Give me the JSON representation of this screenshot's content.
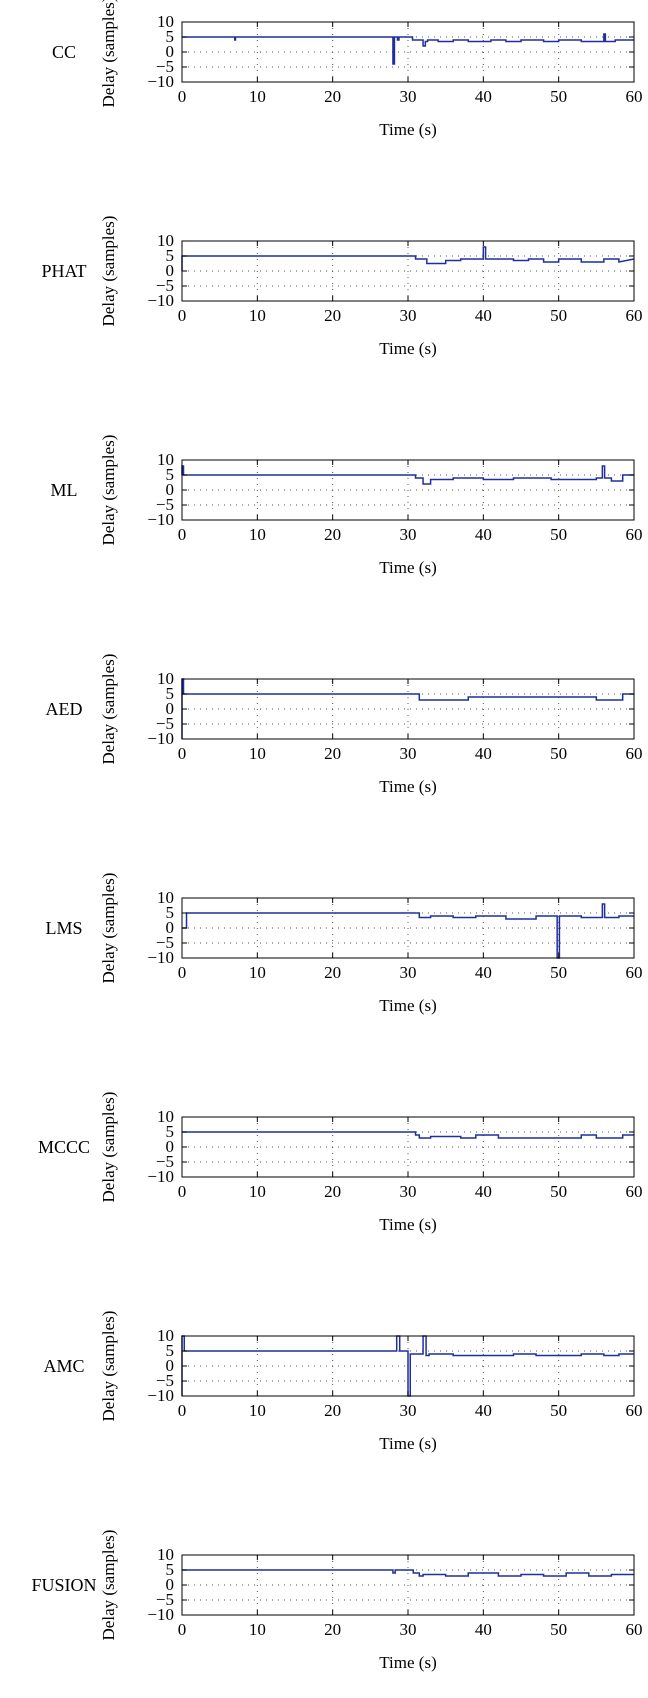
{
  "chart_data": [
    {
      "type": "line",
      "title": "",
      "method_label": "CC",
      "xlabel": "Time (s)",
      "ylabel": "Delay (samples)",
      "xlim": [
        0,
        60
      ],
      "ylim": [
        -10,
        10
      ],
      "xticks": [
        "0",
        "10",
        "20",
        "30",
        "40",
        "50",
        "60"
      ],
      "yticks": [
        "10",
        "5",
        "0",
        "−5",
        "−10"
      ],
      "grid": true,
      "grid_style": "dotted",
      "color": "#1f2f9e",
      "series": [
        {
          "x": [
            0,
            7,
            7,
            7.1,
            7.1,
            28,
            28,
            28.2,
            28.2,
            28.6,
            28.6,
            28.8,
            28.8,
            30.6,
            30.6,
            32,
            32,
            32.3,
            32.3,
            32.6,
            32.6,
            34,
            34,
            36,
            36,
            38,
            38,
            41,
            41,
            43,
            43,
            45,
            45,
            48,
            48,
            50,
            50,
            53,
            53,
            56,
            56,
            56.2,
            56.2,
            57.5,
            57.5,
            60
          ],
          "y": [
            5,
            5,
            4,
            4,
            5,
            5,
            -4,
            -4,
            5,
            5,
            4,
            4,
            5,
            5,
            4,
            4,
            2,
            2,
            3.5,
            3.5,
            4,
            4,
            3.5,
            3.5,
            4,
            4,
            3.5,
            3.5,
            4,
            4,
            3.5,
            3.5,
            4,
            4,
            3.5,
            3.5,
            4,
            4,
            3.5,
            3.5,
            6,
            6,
            3.5,
            3.5,
            4,
            4
          ]
        }
      ]
    },
    {
      "type": "line",
      "title": "",
      "method_label": "PHAT",
      "xlabel": "Time (s)",
      "ylabel": "Delay (samples)",
      "xlim": [
        0,
        60
      ],
      "ylim": [
        -10,
        10
      ],
      "xticks": [
        "0",
        "10",
        "20",
        "30",
        "40",
        "50",
        "60"
      ],
      "yticks": [
        "10",
        "5",
        "0",
        "−5",
        "−10"
      ],
      "grid": true,
      "grid_style": "dotted",
      "color": "#1f2f9e",
      "series": [
        {
          "x": [
            0,
            0,
            0.2,
            0.2,
            31,
            31,
            32.5,
            32.5,
            35,
            35,
            37,
            37,
            40,
            40,
            40.3,
            40.3,
            44,
            44,
            46,
            46,
            48,
            48,
            50,
            50,
            53,
            53,
            56,
            56,
            58,
            58,
            60
          ],
          "y": [
            0,
            5,
            5,
            5,
            5,
            4,
            4,
            2.5,
            2.5,
            3.5,
            3.5,
            4,
            4,
            8,
            8,
            4,
            4,
            3.5,
            3.5,
            4,
            4,
            3,
            3,
            4,
            4,
            3,
            3,
            4,
            4,
            3,
            4
          ]
        }
      ]
    },
    {
      "type": "line",
      "title": "",
      "method_label": "ML",
      "xlabel": "Time (s)",
      "ylabel": "Delay (samples)",
      "xlim": [
        0,
        60
      ],
      "ylim": [
        -10,
        10
      ],
      "xticks": [
        "0",
        "10",
        "20",
        "30",
        "40",
        "50",
        "60"
      ],
      "yticks": [
        "10",
        "5",
        "0",
        "−5",
        "−10"
      ],
      "grid": true,
      "grid_style": "dotted",
      "color": "#1f2f9e",
      "series": [
        {
          "x": [
            0,
            0,
            0.2,
            0.2,
            31,
            31,
            32,
            32,
            33,
            33,
            36,
            36,
            40,
            40,
            44,
            44,
            49,
            49,
            55,
            55,
            55.8,
            55.8,
            56.1,
            56.1,
            57,
            57,
            58.5,
            58.5,
            60
          ],
          "y": [
            5,
            8,
            8,
            5,
            5,
            4,
            4,
            2,
            2,
            3.5,
            3.5,
            4,
            4,
            3.5,
            3.5,
            4,
            4,
            3.5,
            3.5,
            4,
            4,
            8,
            8,
            4,
            4,
            3,
            3,
            5,
            5
          ]
        }
      ]
    },
    {
      "type": "line",
      "title": "",
      "method_label": "AED",
      "xlabel": "Time (s)",
      "ylabel": "Delay (samples)",
      "xlim": [
        0,
        60
      ],
      "ylim": [
        -10,
        10
      ],
      "xticks": [
        "0",
        "10",
        "20",
        "30",
        "40",
        "50",
        "60"
      ],
      "yticks": [
        "10",
        "5",
        "0",
        "−5",
        "−10"
      ],
      "grid": true,
      "grid_style": "dotted",
      "color": "#1f2f9e",
      "series": [
        {
          "x": [
            0,
            0,
            0.2,
            0.2,
            0.6,
            0.6,
            31.5,
            31.5,
            38,
            38,
            55,
            55,
            58.5,
            58.5,
            60
          ],
          "y": [
            -10,
            10,
            10,
            5,
            5,
            5,
            5,
            3,
            3,
            4,
            4,
            3,
            3,
            5,
            5
          ]
        }
      ]
    },
    {
      "type": "line",
      "title": "",
      "method_label": "LMS",
      "xlabel": "Time (s)",
      "ylabel": "Delay (samples)",
      "xlim": [
        0,
        60
      ],
      "ylim": [
        -10,
        10
      ],
      "xticks": [
        "0",
        "10",
        "20",
        "30",
        "40",
        "50",
        "60"
      ],
      "yticks": [
        "10",
        "5",
        "0",
        "−5",
        "−10"
      ],
      "grid": true,
      "grid_style": "dotted",
      "color": "#1f2f9e",
      "series": [
        {
          "x": [
            0,
            0.6,
            0.6,
            31.5,
            31.5,
            33,
            33,
            36,
            36,
            39,
            39,
            43,
            43,
            47,
            47,
            49.8,
            49.8,
            50.1,
            50.1,
            53,
            53,
            55.8,
            55.8,
            56.1,
            56.1,
            58,
            58,
            60
          ],
          "y": [
            0,
            0,
            5,
            5,
            3.5,
            3.5,
            4,
            4,
            3.5,
            3.5,
            4,
            4,
            3,
            3,
            4,
            4,
            -10,
            -10,
            4,
            4,
            3.5,
            3.5,
            8,
            8,
            3.5,
            3.5,
            4,
            4
          ]
        }
      ]
    },
    {
      "type": "line",
      "title": "",
      "method_label": "MCCC",
      "xlabel": "Time (s)",
      "ylabel": "Delay (samples)",
      "xlim": [
        0,
        60
      ],
      "ylim": [
        -10,
        10
      ],
      "xticks": [
        "0",
        "10",
        "20",
        "30",
        "40",
        "50",
        "60"
      ],
      "yticks": [
        "10",
        "5",
        "0",
        "−5",
        "−10"
      ],
      "grid": true,
      "grid_style": "dotted",
      "color": "#1f2f9e",
      "series": [
        {
          "x": [
            0,
            31,
            31,
            31.5,
            31.5,
            33,
            33,
            37,
            37,
            39,
            39,
            42,
            42,
            46,
            46,
            53,
            53,
            55,
            55,
            58.5,
            58.5,
            60
          ],
          "y": [
            5,
            5,
            4,
            4,
            3,
            3,
            3.5,
            3.5,
            3,
            3,
            4,
            4,
            3,
            3,
            3,
            3,
            4,
            4,
            3,
            3,
            4,
            4
          ]
        }
      ]
    },
    {
      "type": "line",
      "title": "",
      "method_label": "AMC",
      "xlabel": "Time (s)",
      "ylabel": "Delay (samples)",
      "xlim": [
        0,
        60
      ],
      "ylim": [
        -10,
        10
      ],
      "xticks": [
        "0",
        "10",
        "20",
        "30",
        "40",
        "50",
        "60"
      ],
      "yticks": [
        "10",
        "5",
        "0",
        "−5",
        "−10"
      ],
      "grid": true,
      "grid_style": "dotted",
      "color": "#1f2f9e",
      "series": [
        {
          "x": [
            0,
            0,
            0.3,
            0.3,
            28.5,
            28.5,
            28.9,
            28.9,
            30,
            30,
            30.3,
            30.3,
            32,
            32,
            32.4,
            32.4,
            32.8,
            32.8,
            36,
            36,
            44,
            44,
            47,
            47,
            53,
            53,
            56,
            56,
            58,
            58,
            60
          ],
          "y": [
            -10,
            10,
            10,
            5,
            5,
            10,
            10,
            5,
            5,
            -10,
            -10,
            4,
            4,
            10,
            10,
            3.5,
            3.5,
            4,
            4,
            3.5,
            3.5,
            4,
            4,
            3.5,
            3.5,
            4,
            4,
            3.5,
            3.5,
            4,
            4
          ]
        }
      ]
    },
    {
      "type": "line",
      "title": "",
      "method_label": "FUSION",
      "xlabel": "Time (s)",
      "ylabel": "Delay (samples)",
      "xlim": [
        0,
        60
      ],
      "ylim": [
        -10,
        10
      ],
      "xticks": [
        "0",
        "10",
        "20",
        "30",
        "40",
        "50",
        "60"
      ],
      "yticks": [
        "10",
        "5",
        "0",
        "−5",
        "−10"
      ],
      "grid": true,
      "grid_style": "dotted",
      "color": "#1f2f9e",
      "series": [
        {
          "x": [
            0,
            28,
            28,
            28.3,
            28.3,
            30.7,
            30.7,
            31.5,
            31.5,
            32,
            32,
            35,
            35,
            38,
            38,
            42,
            42,
            45,
            45,
            48,
            48,
            51,
            51,
            54,
            54,
            57,
            57,
            60
          ],
          "y": [
            5,
            5,
            4,
            4,
            5,
            5,
            4,
            4,
            3,
            3,
            3.5,
            3.5,
            3,
            3,
            4,
            4,
            3,
            3,
            3.5,
            3.5,
            3,
            3,
            4,
            4,
            3,
            3,
            3.5,
            3.5
          ]
        }
      ]
    }
  ]
}
